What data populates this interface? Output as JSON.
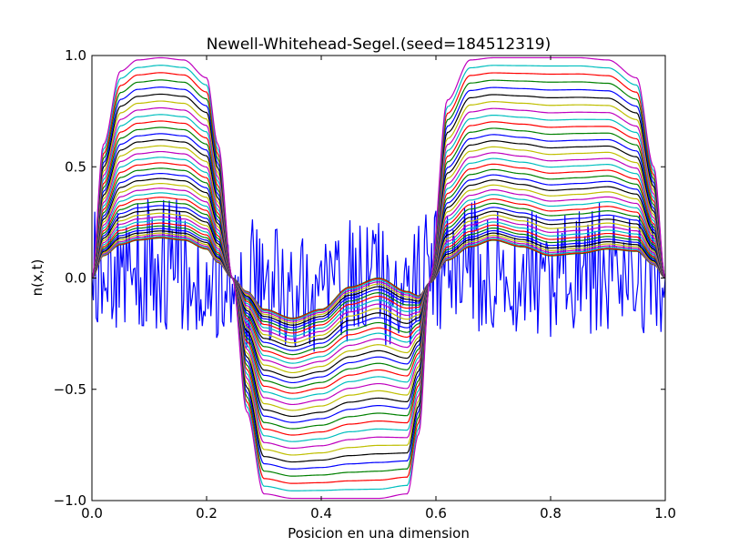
{
  "chart_data": {
    "type": "line",
    "title": "Newell-Whitehead-Segel.(seed=184512319)",
    "xlabel": "Posicion en una dimension",
    "ylabel": "n(x,t)",
    "xlim": [
      0.0,
      1.0
    ],
    "ylim": [
      -1.0,
      1.0
    ],
    "xticks": [
      "0.0",
      "0.2",
      "0.4",
      "0.6",
      "0.8",
      "1.0"
    ],
    "yticks": [
      "1.0",
      "0.5",
      "0.0",
      "−0.5",
      "−1.0"
    ],
    "grid": false,
    "legend": "none",
    "seed": 184512319,
    "n_series": 40,
    "n_points": 401,
    "initial_noise_amplitude": 0.3,
    "cycle_colors": [
      "#0000ff",
      "#008000",
      "#ff0000",
      "#00bfbf",
      "#bf00bf",
      "#bfbf00",
      "#000000"
    ],
    "profile_points": {
      "x": [
        0.0,
        0.02,
        0.05,
        0.08,
        0.12,
        0.16,
        0.2,
        0.22,
        0.245,
        0.27,
        0.3,
        0.35,
        0.4,
        0.45,
        0.5,
        0.55,
        0.57,
        0.59,
        0.62,
        0.66,
        0.7,
        0.75,
        0.8,
        0.85,
        0.9,
        0.95,
        0.98,
        1.0
      ],
      "final": [
        0.0,
        0.6,
        0.93,
        0.98,
        0.99,
        0.98,
        0.9,
        0.6,
        0.0,
        -0.6,
        -0.97,
        -0.99,
        -0.99,
        -0.99,
        -0.99,
        -0.97,
        -0.7,
        0.0,
        0.8,
        0.98,
        0.99,
        0.99,
        0.99,
        0.99,
        0.98,
        0.9,
        0.5,
        0.0
      ],
      "early": [
        0.0,
        0.1,
        0.15,
        0.17,
        0.18,
        0.17,
        0.13,
        0.07,
        0.0,
        -0.06,
        -0.14,
        -0.18,
        -0.14,
        -0.04,
        0.0,
        -0.06,
        -0.08,
        -0.02,
        0.08,
        0.14,
        0.17,
        0.14,
        0.1,
        0.11,
        0.13,
        0.12,
        0.06,
        0.0
      ]
    }
  }
}
